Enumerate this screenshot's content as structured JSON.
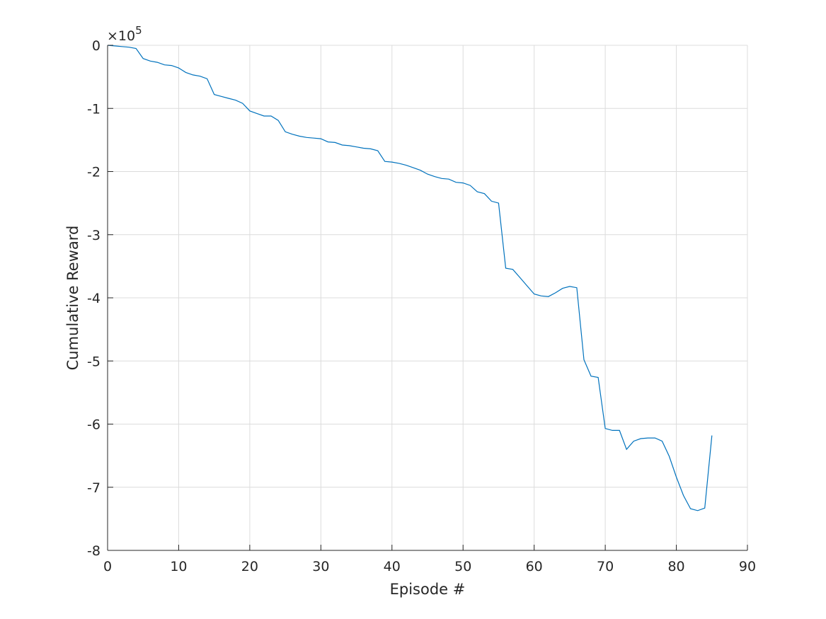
{
  "chart_data": {
    "type": "line",
    "title": "",
    "xlabel": "Episode #",
    "ylabel": "Cumulative Reward",
    "y_multiplier": {
      "base": "×10",
      "exponent": "5"
    },
    "xlim": [
      0,
      90
    ],
    "ylim": [
      -8,
      0
    ],
    "x_ticks": [
      0,
      10,
      20,
      30,
      40,
      50,
      60,
      70,
      80,
      90
    ],
    "y_ticks": [
      0,
      -1,
      -2,
      -3,
      -4,
      -5,
      -6,
      -7,
      -8
    ],
    "grid": true,
    "legend": "none",
    "series_color": "#0072bd",
    "series": [
      {
        "x": [
          0,
          1,
          2,
          3,
          4,
          5,
          6,
          7,
          8,
          9,
          10,
          11,
          12,
          13,
          14,
          15,
          16,
          17,
          18,
          19,
          20,
          21,
          22,
          23,
          24,
          25,
          26,
          27,
          28,
          29,
          30,
          31,
          32,
          33,
          34,
          35,
          36,
          37,
          38,
          39,
          40,
          41,
          42,
          43,
          44,
          45,
          46,
          47,
          48,
          49,
          50,
          51,
          52,
          53,
          54,
          55,
          56,
          57,
          58,
          59,
          60,
          61,
          62,
          63,
          64,
          65,
          66,
          67,
          68,
          69,
          70,
          71,
          72,
          73,
          74,
          75,
          76,
          77,
          78,
          79,
          80,
          81,
          82,
          83,
          84,
          85
        ],
        "values": [
          0,
          -0.01,
          -0.02,
          -0.03,
          -0.05,
          -0.21,
          -0.25,
          -0.27,
          -0.31,
          -0.32,
          -0.36,
          -0.43,
          -0.47,
          -0.49,
          -0.53,
          -0.78,
          -0.81,
          -0.84,
          -0.87,
          -0.92,
          -1.04,
          -1.08,
          -1.12,
          -1.12,
          -1.19,
          -1.37,
          -1.41,
          -1.44,
          -1.46,
          -1.47,
          -1.48,
          -1.53,
          -1.54,
          -1.58,
          -1.59,
          -1.61,
          -1.63,
          -1.64,
          -1.67,
          -1.84,
          -1.85,
          -1.87,
          -1.9,
          -1.94,
          -1.98,
          -2.04,
          -2.08,
          -2.11,
          -2.12,
          -2.17,
          -2.18,
          -2.22,
          -2.32,
          -2.35,
          -2.47,
          -2.5,
          -3.53,
          -3.55,
          -3.68,
          -3.81,
          -3.94,
          -3.97,
          -3.98,
          -3.92,
          -3.85,
          -3.82,
          -3.84,
          -4.98,
          -5.24,
          -5.26,
          -6.07,
          -6.1,
          -6.1,
          -6.4,
          -6.27,
          -6.23,
          -6.22,
          -6.22,
          -6.27,
          -6.51,
          -6.84,
          -7.13,
          -7.34,
          -7.37,
          -7.33,
          -6.18
        ]
      }
    ]
  }
}
